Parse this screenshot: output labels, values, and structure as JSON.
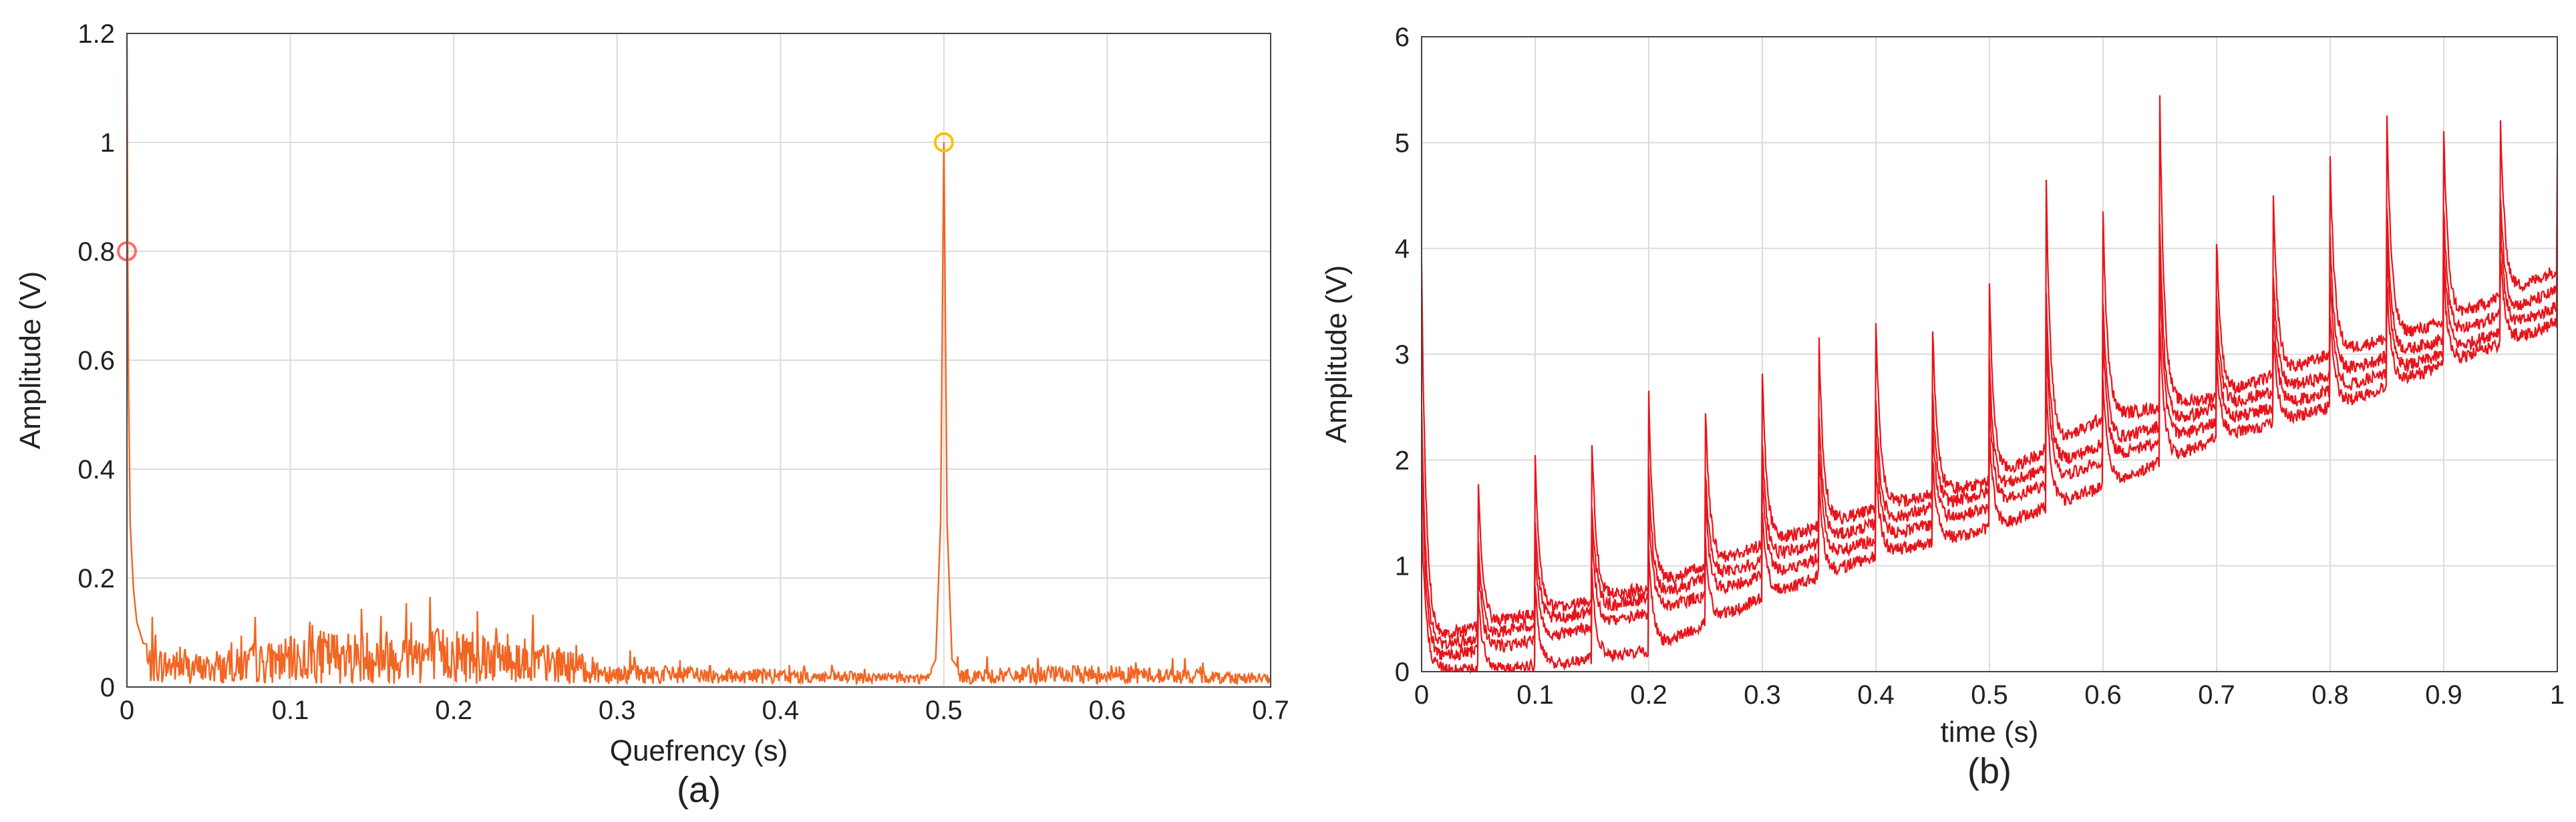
{
  "figure": {
    "panel_a_label": "(a)",
    "panel_b_label": "(b)"
  },
  "chart_data": [
    {
      "type": "line",
      "panel": "(a)",
      "title": "",
      "xlabel": "Quefrency (s)",
      "ylabel": "Amplitude  (V)",
      "xlim": [
        0,
        0.7
      ],
      "ylim": [
        0,
        1.2
      ],
      "xticks": [
        "0",
        "0.1",
        "0.2",
        "0.3",
        "0.4",
        "0.5",
        "0.6",
        "0.7"
      ],
      "yticks": [
        "0",
        "0.2",
        "0.4",
        "0.6",
        "0.8",
        "1",
        "1.2"
      ],
      "grid": true,
      "series_color": "#f26522",
      "marker_color": "#ffc000",
      "noise_floor": 0.03,
      "series": [
        {
          "values_description": "noisy cepstrum",
          "x": [
            0,
            0.0005,
            0.001,
            0.002,
            0.004,
            0.006,
            0.01,
            0.05,
            0.12,
            0.22,
            0.3,
            0.4,
            0.49,
            0.495,
            0.498,
            0.5,
            0.502,
            0.505,
            0.51,
            0.6,
            0.7
          ],
          "y": [
            1.2,
            0.8,
            0.55,
            0.3,
            0.18,
            0.12,
            0.08,
            0.06,
            0.11,
            0.12,
            0.04,
            0.03,
            0.02,
            0.05,
            0.3,
            1.0,
            0.3,
            0.05,
            0.03,
            0.04,
            0.02
          ]
        }
      ],
      "markers": [
        {
          "x": 0.0,
          "y": 0.8,
          "color": "#ff6b6b"
        },
        {
          "x": 0.5,
          "y": 1.0,
          "color": "#ffc000"
        }
      ]
    },
    {
      "type": "line",
      "panel": "(b)",
      "title": "",
      "xlabel": "time (s)",
      "ylabel": "Amplitude (V)",
      "xlim": [
        0,
        1
      ],
      "ylim": [
        0,
        6
      ],
      "xticks": [
        "0",
        "0.1",
        "0.2",
        "0.3",
        "0.4",
        "0.5",
        "0.6",
        "0.7",
        "0.8",
        "0.9",
        "1"
      ],
      "yticks": [
        "0",
        "1",
        "2",
        "3",
        "4",
        "5",
        "6"
      ],
      "grid": true,
      "series_color": "#e8141b",
      "spike_times": [
        0.0,
        0.05,
        0.1,
        0.15,
        0.2,
        0.25,
        0.3,
        0.35,
        0.4,
        0.45,
        0.5,
        0.55,
        0.6,
        0.65,
        0.7,
        0.75,
        0.8,
        0.85,
        0.9,
        0.95,
        1.0
      ],
      "spike_peaks": [
        3.8,
        1.8,
        2.0,
        2.2,
        2.6,
        2.45,
        2.85,
        3.1,
        3.3,
        3.25,
        3.65,
        4.6,
        4.35,
        5.4,
        4.1,
        4.45,
        4.85,
        5.25,
        5.1,
        5.2,
        4.85
      ],
      "series": [
        {
          "values_description": "trace 1",
          "x": [
            0,
            0.1,
            0.2,
            0.3,
            0.4,
            0.5,
            0.6,
            0.7,
            0.8,
            0.9,
            1.0
          ],
          "y": [
            0.3,
            0.55,
            0.8,
            1.2,
            1.55,
            1.8,
            2.4,
            2.6,
            3.0,
            3.3,
            3.8
          ]
        },
        {
          "values_description": "trace 2",
          "x": [
            0,
            0.1,
            0.2,
            0.3,
            0.4,
            0.5,
            0.6,
            0.7,
            0.8,
            0.9,
            1.0
          ],
          "y": [
            0.2,
            0.45,
            0.7,
            1.05,
            1.4,
            1.7,
            2.15,
            2.5,
            2.8,
            3.15,
            3.6
          ]
        },
        {
          "values_description": "trace 3",
          "x": [
            0,
            0.1,
            0.2,
            0.3,
            0.4,
            0.5,
            0.6,
            0.7,
            0.8,
            0.9,
            1.0
          ],
          "y": [
            0.1,
            0.3,
            0.55,
            0.9,
            1.25,
            1.55,
            2.0,
            2.35,
            2.65,
            3.0,
            3.45
          ]
        },
        {
          "values_description": "trace 4",
          "x": [
            0,
            0.1,
            0.2,
            0.3,
            0.4,
            0.5,
            0.6,
            0.7,
            0.8,
            0.9,
            1.0
          ],
          "y": [
            0.0,
            0.05,
            0.2,
            0.7,
            1.1,
            1.35,
            1.75,
            2.2,
            2.5,
            2.9,
            3.3
          ]
        }
      ]
    }
  ]
}
